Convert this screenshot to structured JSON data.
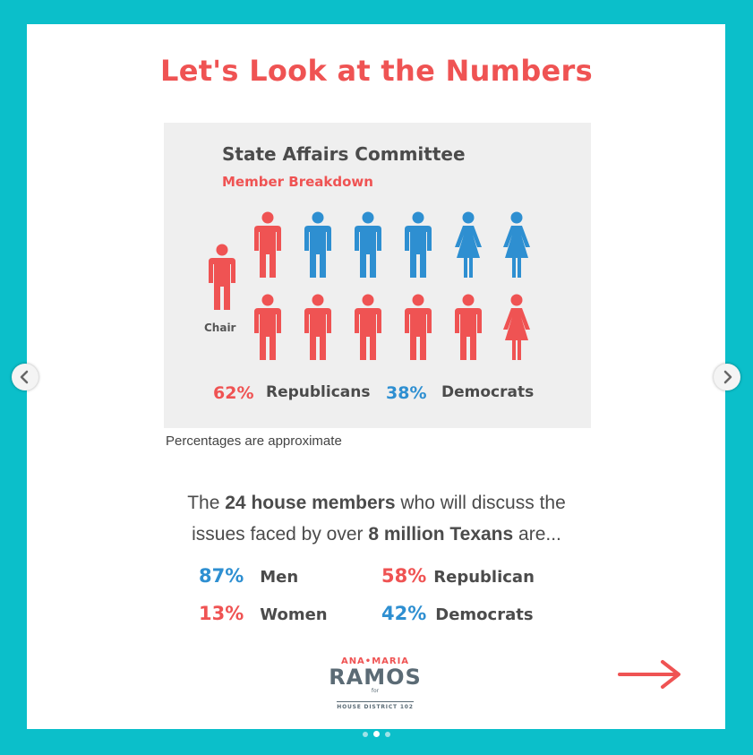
{
  "title": "Let's Look at the Numbers",
  "panel": {
    "title": "State Affairs Committee",
    "subtitle": "Member Breakdown",
    "chair_label": "Chair",
    "republicans_pct": "62%",
    "republicans_label": "Republicans",
    "democrats_pct": "38%",
    "democrats_label": "Democrats"
  },
  "note": "Percentages are approximate",
  "paragraph": {
    "line1_a": "The ",
    "line1_b": "24 house members",
    "line1_c": " who will discuss the",
    "line2_a": "issues faced by over ",
    "line2_b": "8 million Texans",
    "line2_c": " are..."
  },
  "stats": {
    "men_pct": "87%",
    "men_label": "Men",
    "women_pct": "13%",
    "women_label": "Women",
    "rep_pct": "58%",
    "rep_label": "Republican",
    "dem_pct": "42%",
    "dem_label": "Democrats"
  },
  "logo": {
    "top": "ANA•MARIA",
    "main": "RAMOS",
    "for": "for",
    "sub": "HOUSE DISTRICT 102"
  },
  "colors": {
    "teal": "#0bbfca",
    "red": "#ef5353",
    "blue": "#2e8fd1"
  }
}
